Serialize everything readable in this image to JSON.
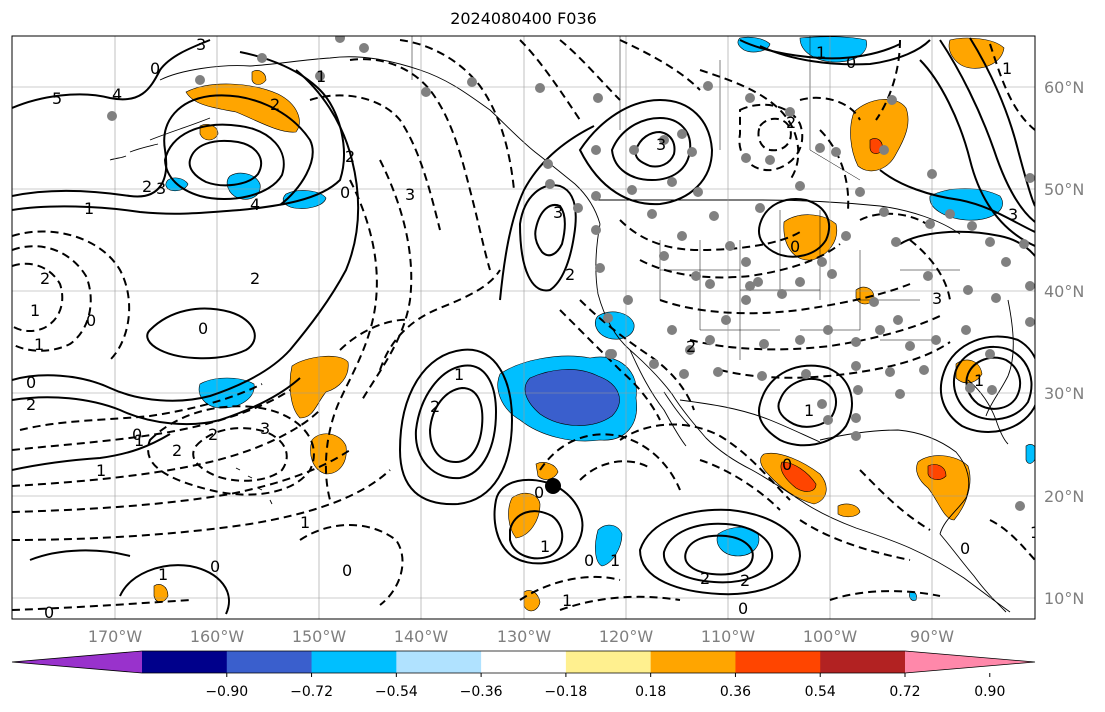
{
  "title": "2024080400 F036",
  "longitude_labels": [
    "170°W",
    "160°W",
    "150°W",
    "140°W",
    "130°W",
    "120°W",
    "110°W",
    "100°W",
    "90°W"
  ],
  "latitude_labels": [
    "60°N",
    "50°N",
    "40°N",
    "30°N",
    "20°N",
    "10°N"
  ],
  "colorbar": {
    "tick_labels": [
      "−0.90",
      "−0.72",
      "−0.54",
      "−0.36",
      "−0.18",
      "0.18",
      "0.36",
      "0.54",
      "0.72",
      "0.90"
    ],
    "colors": [
      "#9932cc",
      "#00008b",
      "#3a5fcd",
      "#00bfff",
      "#b0e2ff",
      "#ffffff",
      "#fff08f",
      "#ffa500",
      "#ff4500",
      "#b22222",
      "#ff88aa"
    ]
  },
  "contour_labels": [
    "5",
    "4",
    "3",
    "2",
    "1",
    "0",
    "2",
    "3",
    "4",
    "3",
    "2",
    "1",
    "0",
    "1",
    "2",
    "0",
    "2",
    "1",
    "0",
    "3",
    "2",
    "1",
    "1",
    "2",
    "3",
    "2",
    "2",
    "0",
    "1",
    "2",
    "0",
    "1",
    "1",
    "0",
    "1",
    "0",
    "0",
    "3",
    "2",
    "1",
    "0",
    "1",
    "0",
    "3",
    "1",
    "1",
    "2",
    "0",
    "2",
    "1",
    "1",
    "0",
    "2",
    "3",
    "0",
    "0",
    "1",
    "0"
  ],
  "colors": {
    "positive_anomaly": "#ffa500",
    "strong_positive": "#ff4500",
    "negative_anomaly": "#00bfff",
    "strong_negative": "#3a5fcd",
    "grid": "#999999",
    "station": "#808080"
  }
}
